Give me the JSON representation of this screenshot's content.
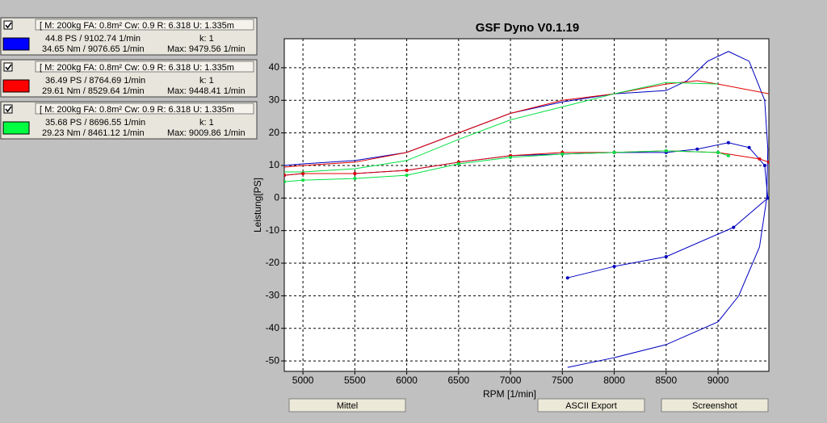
{
  "panels": [
    {
      "checked": true,
      "color": "#0000ff",
      "header": "[ M: 200kg  FA: 0.8m²  Cw: 0.9  R: 6.318  U: 1.335m",
      "power": "44.8 PS / 9102.74 1/min",
      "k": "k: 1",
      "torque": "34.65 Nm / 9076.65 1/min",
      "max": "Max: 9479.56 1/min"
    },
    {
      "checked": true,
      "color": "#ff0000",
      "header": "[ M: 200kg  FA: 0.8m²  Cw: 0.9  R: 6.318  U: 1.335m",
      "power": "36.49 PS / 8764.69 1/min",
      "k": "k: 1",
      "torque": "29.61 Nm / 8529.64 1/min",
      "max": "Max: 9448.41 1/min"
    },
    {
      "checked": true,
      "color": "#00ff40",
      "header": "[ M: 200kg  FA: 0.8m²  Cw: 0.9  R: 6.318  U: 1.335m",
      "power": "35.68 PS / 8696.55 1/min",
      "k": "k: 1",
      "torque": "29.23 Nm / 8461.12 1/min",
      "max": "Max: 9009.86 1/min"
    }
  ],
  "buttons": [
    "Mittel",
    "ASCII Export",
    "Screenshot"
  ],
  "chart_data": {
    "type": "line",
    "title": "GSF Dyno V0.1.19",
    "x_label": "RPM [1/min]",
    "y_label": "Leistung[PS]",
    "xlim": [
      4820,
      9490
    ],
    "ylim": [
      -53.2,
      48.9
    ],
    "xticks": [
      5000,
      5500,
      6000,
      6500,
      7000,
      7500,
      8000,
      8500,
      9000
    ],
    "yticks": [
      -50,
      -40,
      -30,
      -20,
      -10,
      0,
      10,
      20,
      30,
      40
    ],
    "grid": true,
    "series": [
      {
        "color": "#0000c0",
        "markers": false,
        "x": [
          4820,
          5000,
          5500,
          6000,
          6500,
          7000,
          7500,
          8000,
          8500,
          8700,
          8900,
          9100,
          9300,
          9450,
          9480,
          9470,
          9400,
          9200,
          9000,
          8500,
          8000,
          7550
        ],
        "values": [
          10,
          10.5,
          11.5,
          14,
          20,
          26,
          29.5,
          32,
          33,
          36,
          42,
          45,
          42,
          30,
          15,
          0,
          -15,
          -30,
          -38,
          -45,
          -49,
          -52
        ]
      },
      {
        "color": "#0000c0",
        "markers": true,
        "x": [
          4820,
          5000,
          5500,
          6000,
          6500,
          7000,
          7500,
          8000,
          8500,
          8800,
          9100,
          9300,
          9450,
          9480,
          9150,
          8500,
          8000,
          7550
        ],
        "values": [
          7,
          7.5,
          7.5,
          8.5,
          11,
          13,
          13.5,
          14,
          14,
          15,
          17,
          15.5,
          10,
          0,
          -9,
          -18,
          -21,
          -24.5
        ]
      },
      {
        "color": "#e00000",
        "markers": false,
        "x": [
          4820,
          5000,
          5500,
          6000,
          6500,
          7000,
          7500,
          8000,
          8500,
          8800,
          9000,
          9490
        ],
        "values": [
          9.5,
          10,
          11,
          14,
          20,
          26,
          30,
          32,
          35,
          36,
          35,
          32
        ]
      },
      {
        "color": "#e00000",
        "markers": true,
        "x": [
          4820,
          5000,
          5500,
          6000,
          6500,
          7000,
          7500,
          8000,
          8500,
          9000,
          9400,
          9490
        ],
        "values": [
          7,
          7.5,
          7.5,
          8.5,
          11,
          13,
          14,
          14,
          14.5,
          14,
          12,
          11
        ]
      },
      {
        "color": "#00e040",
        "markers": false,
        "x": [
          4820,
          5000,
          5500,
          6000,
          6500,
          7000,
          7500,
          8000,
          8500,
          9000
        ],
        "values": [
          8,
          8,
          9,
          11.5,
          18,
          24,
          28,
          32,
          35.5,
          35
        ]
      },
      {
        "color": "#00e040",
        "markers": true,
        "x": [
          4820,
          5000,
          5500,
          6000,
          6500,
          7000,
          7500,
          8000,
          8500,
          9000,
          9100
        ],
        "values": [
          5,
          5.5,
          6,
          7,
          10.5,
          12.5,
          13.5,
          14,
          14.5,
          14,
          13
        ]
      }
    ]
  }
}
